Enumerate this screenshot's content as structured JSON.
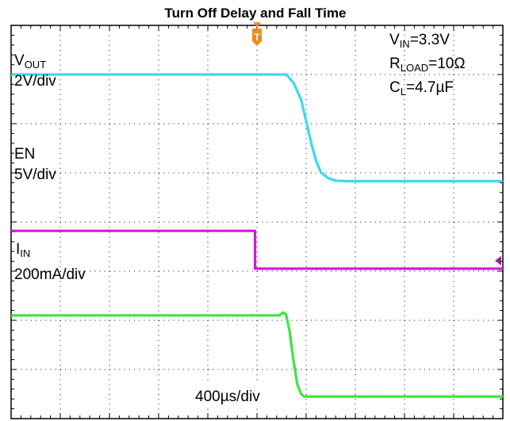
{
  "chart_data": {
    "type": "line",
    "title": "Turn Off Delay and Fall Time",
    "xlabel": "400µs/div",
    "ylabel": "",
    "x_divisions": 10,
    "y_divisions": 8,
    "grid": true,
    "x_unit": "div",
    "y_unit": "div",
    "xlim": [
      0,
      10
    ],
    "ylim": [
      -4,
      4
    ],
    "trigger_marker": {
      "label": "T",
      "x": 5.0,
      "color": "#f08a1c"
    },
    "level_marker": {
      "channel": "EN",
      "y": -0.95,
      "color": "#9b1ea3"
    },
    "series": [
      {
        "name": "VOUT",
        "scale": "2V/div",
        "color": "#3ad9f0",
        "x": [
          0,
          5.6,
          5.75,
          5.9,
          6.0,
          6.1,
          6.2,
          6.3,
          6.45,
          6.6,
          6.8,
          7.2,
          10
        ],
        "y": [
          3.0,
          3.0,
          2.82,
          2.48,
          2.05,
          1.62,
          1.25,
          1.01,
          0.89,
          0.84,
          0.83,
          0.83,
          0.83
        ]
      },
      {
        "name": "EN",
        "scale": "5V/div",
        "color": "#d61ad6",
        "x": [
          0,
          4.96,
          4.96,
          10
        ],
        "y": [
          -0.18,
          -0.18,
          -0.95,
          -0.95
        ]
      },
      {
        "name": "IIN",
        "scale": "200mA/div",
        "color": "#3ce63c",
        "x": [
          0,
          5.46,
          5.53,
          5.59,
          5.66,
          5.74,
          5.82,
          5.9,
          5.96,
          6.05,
          10
        ],
        "y": [
          -1.9,
          -1.9,
          -1.84,
          -1.88,
          -2.2,
          -2.8,
          -3.3,
          -3.5,
          -3.55,
          -3.55,
          -3.55
        ]
      }
    ],
    "annotations": {
      "vout_label": "V",
      "vout_sub": "OUT",
      "vout_scale": "2V/div",
      "en_label": "EN",
      "en_scale": "5V/div",
      "iin_label": "I",
      "iin_sub": "IN",
      "iin_scale": "200mA/div",
      "vin_label": "V",
      "vin_sub": "IN",
      "vin_value": "=3.3V",
      "rload_label": "R",
      "rload_sub": "LOAD",
      "rload_value": "=10Ω",
      "cl_label": "C",
      "cl_sub": "L",
      "cl_value": "=4.7µF"
    }
  }
}
